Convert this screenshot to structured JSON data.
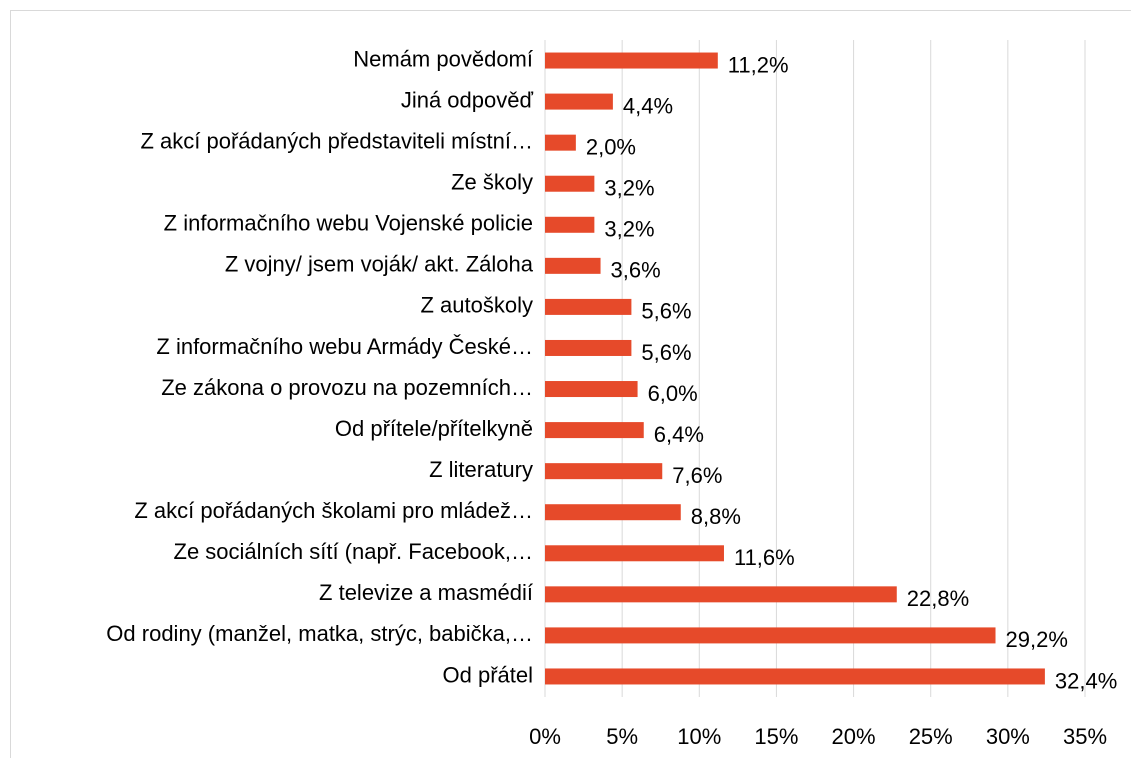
{
  "chart_data": {
    "type": "bar",
    "orientation": "horizontal",
    "categories": [
      "Nemám povědomí",
      "Jiná odpověď",
      "Z akcí pořádaných představiteli místní…",
      "Ze školy",
      "Z informačního webu Vojenské policie",
      "Z vojny/ jsem voják/ akt. Záloha",
      "Z autoškoly",
      "Z informačního webu Armády České…",
      "Ze zákona o provozu na pozemních…",
      "Od přítele/přítelkyně",
      "Z literatury",
      "Z akcí pořádaných školami pro mládež…",
      "Ze sociálních sítí (např. Facebook,…",
      "Z televize a masmédií",
      "Od rodiny (manžel, matka, strýc, babička,…",
      "Od přátel"
    ],
    "values": [
      11.2,
      4.4,
      2.0,
      3.2,
      3.2,
      3.6,
      5.6,
      5.6,
      6.0,
      6.4,
      7.6,
      8.8,
      11.6,
      22.8,
      29.2,
      32.4
    ],
    "value_labels": [
      "11,2%",
      "4,4%",
      "2,0%",
      "3,2%",
      "3,2%",
      "3,6%",
      "5,6%",
      "5,6%",
      "6,0%",
      "6,4%",
      "7,6%",
      "8,8%",
      "11,6%",
      "22,8%",
      "29,2%",
      "32,4%"
    ],
    "color": "#e64a2a",
    "xlim": [
      0,
      35
    ],
    "xticks": [
      {
        "value": 0,
        "label": "0%"
      },
      {
        "value": 5,
        "label": "5%"
      },
      {
        "value": 10,
        "label": "10%"
      },
      {
        "value": 15,
        "label": "15%"
      },
      {
        "value": 20,
        "label": "20%"
      },
      {
        "value": 25,
        "label": "25%"
      },
      {
        "value": 30,
        "label": "30%"
      },
      {
        "value": 35,
        "label": "35%"
      }
    ],
    "grid": true
  }
}
